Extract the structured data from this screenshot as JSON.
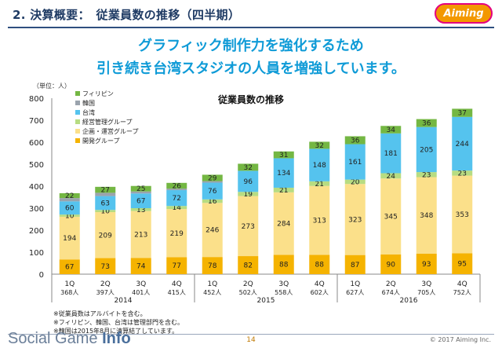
{
  "header": {
    "title": "2. 決算概要：　従業員数の推移（四半期）",
    "logo_text": "Aiming"
  },
  "headline": {
    "line1": "グラフィック制作力を強化するため",
    "line2": "引き続き台湾スタジオの人員を増強しています。"
  },
  "unit_label": "（単位：人）",
  "chart_data": {
    "type": "bar",
    "stacked": true,
    "title": "従業員数の推移",
    "categories": [
      "1Q",
      "2Q",
      "3Q",
      "4Q",
      "1Q",
      "2Q",
      "3Q",
      "4Q",
      "1Q",
      "2Q",
      "3Q",
      "4Q"
    ],
    "totals_labels": [
      "368人",
      "397人",
      "401人",
      "415人",
      "452人",
      "502人",
      "558人",
      "602人",
      "627人",
      "674人",
      "705人",
      "752人"
    ],
    "years": [
      {
        "label": "2014",
        "start": 0,
        "end": 3
      },
      {
        "label": "2015",
        "start": 4,
        "end": 7
      },
      {
        "label": "2016",
        "start": 8,
        "end": 11
      }
    ],
    "ylim": [
      0,
      800
    ],
    "yticks": [
      0,
      100,
      200,
      300,
      400,
      500,
      600,
      700,
      800
    ],
    "series": [
      {
        "name": "開発グループ",
        "color": "#f5b300",
        "values": [
          67,
          73,
          74,
          77,
          78,
          82,
          88,
          88,
          87,
          90,
          93,
          95
        ]
      },
      {
        "name": "企画・運営グループ",
        "color": "#fbe08a",
        "values": [
          194,
          209,
          213,
          219,
          246,
          273,
          284,
          313,
          323,
          345,
          348,
          353
        ]
      },
      {
        "name": "経営管理グループ",
        "color": "#b7dc82",
        "values": [
          10,
          10,
          13,
          14,
          16,
          19,
          21,
          21,
          20,
          24,
          23,
          23
        ]
      },
      {
        "name": "台湾",
        "color": "#55c3ee",
        "values": [
          60,
          63,
          67,
          72,
          76,
          96,
          134,
          148,
          161,
          181,
          205,
          244
        ]
      },
      {
        "name": "韓国",
        "color": "#9aa3ad",
        "values": [
          15,
          15,
          9,
          7,
          7,
          0,
          0,
          0,
          0,
          0,
          0,
          0
        ]
      },
      {
        "name": "フィリピン",
        "color": "#74b743",
        "values": [
          22,
          27,
          25,
          26,
          29,
          32,
          31,
          32,
          36,
          34,
          36,
          37
        ]
      }
    ],
    "label_series": [
      0,
      1,
      2,
      3,
      5
    ],
    "legend_order": [
      "フィリピン",
      "韓国",
      "台湾",
      "経営管理グループ",
      "企画・運営グループ",
      "開発グループ"
    ],
    "legend_position": "top-left"
  },
  "notes": [
    "※従業員数はアルバイトを含む。",
    "※フィリピン、韓国、台湾は管理部門を含む。",
    "※韓国は2015年8月に清算結了しています。"
  ],
  "footer": {
    "brand_light": "Social Game ",
    "brand_bold": "Info",
    "page_number": "14",
    "copyright": "© 2017 Aiming Inc."
  }
}
